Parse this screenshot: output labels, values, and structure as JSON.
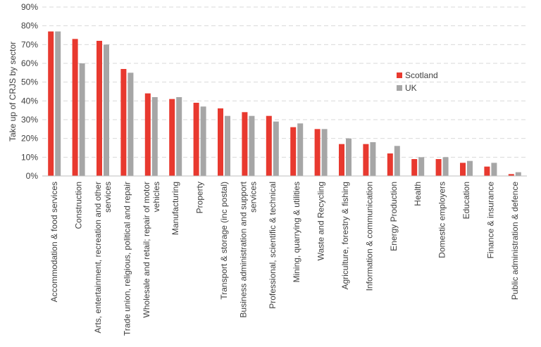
{
  "chart_data": {
    "type": "bar",
    "ylabel": "Take up of CRJS by sector",
    "ylim": [
      0,
      90
    ],
    "yticks": [
      "0%",
      "10%",
      "20%",
      "30%",
      "40%",
      "50%",
      "60%",
      "70%",
      "80%",
      "90%"
    ],
    "grid": true,
    "legend_position": "right",
    "categories": [
      [
        "Accommodation & food services"
      ],
      [
        "Construction"
      ],
      [
        "Arts, entertainment, recreation and other",
        "services"
      ],
      [
        "Trade union, religious, political and repair"
      ],
      [
        "Wholesale and retail; repair of motor",
        "vehicles"
      ],
      [
        "Manufacturing"
      ],
      [
        "Property"
      ],
      [
        "Transport & storage (inc postal)"
      ],
      [
        "Business administration and support",
        "services"
      ],
      [
        "Professional, scientific & technical"
      ],
      [
        "Mining, quarrying & utilities"
      ],
      [
        "Waste and Recycling"
      ],
      [
        "Agriculture, forestry & fishing"
      ],
      [
        "Information & communication"
      ],
      [
        "Energy Production"
      ],
      [
        "Health"
      ],
      [
        "Domestic employers"
      ],
      [
        "Education"
      ],
      [
        "Finance & insurance"
      ],
      [
        "Public administration & defence"
      ]
    ],
    "series": [
      {
        "name": "Scotland",
        "color": "#e8392f",
        "values": [
          77,
          73,
          72,
          57,
          44,
          41,
          39,
          36,
          34,
          32,
          26,
          25,
          17,
          17,
          12,
          9,
          9,
          7,
          5,
          1
        ]
      },
      {
        "name": "UK",
        "color": "#a6a6a6",
        "values": [
          77,
          60,
          70,
          55,
          42,
          42,
          37,
          32,
          32,
          29,
          28,
          25,
          20,
          18,
          16,
          10,
          10,
          8,
          7,
          2
        ]
      }
    ]
  }
}
